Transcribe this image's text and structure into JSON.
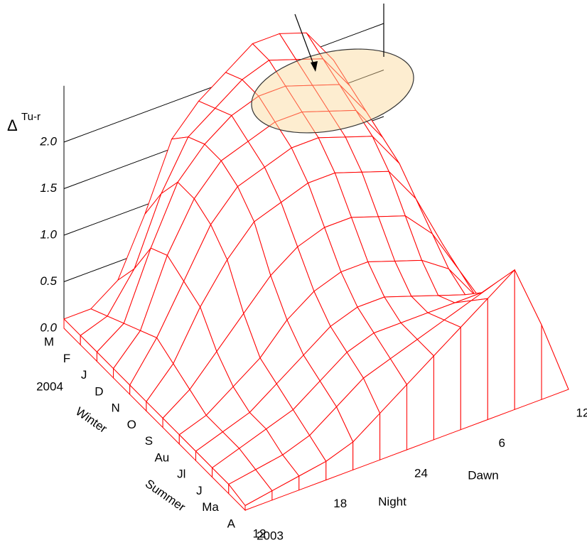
{
  "chart_data": {
    "type": "surface",
    "zlabel": {
      "symbol": "Δ",
      "superscript": "Tu-r"
    },
    "zlim": [
      0,
      2.3
    ],
    "zticks": [
      {
        "value": 0,
        "label": "0.0"
      },
      0.5,
      {
        "value": 1,
        "label": "1.0"
      },
      1.5,
      {
        "value": 2,
        "label": "2.0"
      }
    ],
    "x": [
      "12",
      null,
      null,
      "18",
      null,
      null,
      "24",
      null,
      null,
      "6",
      null,
      null,
      "12"
    ],
    "x_groups": [
      "Night",
      "Dawn"
    ],
    "y": [
      "A",
      "Ma",
      "J",
      "Jl",
      "Au",
      "S",
      "O",
      "N",
      "D",
      "J",
      "F",
      "M"
    ],
    "y_groups": [
      "2003",
      "Summer",
      "Winter",
      "2004"
    ],
    "color": "#ff0000",
    "values": [
      [
        0.05,
        0.1,
        0.15,
        0.2,
        0.3,
        0.5,
        0.7,
        0.9,
        1.1,
        1.3,
        1.5,
        0.8,
        0.0
      ],
      [
        0.1,
        0.15,
        0.2,
        0.3,
        0.5,
        0.7,
        0.8,
        0.9,
        1.0,
        1.1,
        1.2,
        0.6,
        0.0
      ],
      [
        0.1,
        0.2,
        0.3,
        0.4,
        0.6,
        0.8,
        0.9,
        0.9,
        0.9,
        0.9,
        0.9,
        0.5,
        0.0
      ],
      [
        0.1,
        0.2,
        0.3,
        0.5,
        0.7,
        0.9,
        1.0,
        1.0,
        0.9,
        0.8,
        0.7,
        0.4,
        0.0
      ],
      [
        0.1,
        0.2,
        0.4,
        0.6,
        0.9,
        1.1,
        1.2,
        1.2,
        1.1,
        1.0,
        0.8,
        0.4,
        0.0
      ],
      [
        0.1,
        0.3,
        0.6,
        0.9,
        1.2,
        1.4,
        1.5,
        1.5,
        1.4,
        1.3,
        1.0,
        0.5,
        0.0
      ],
      [
        0.1,
        0.4,
        0.9,
        1.3,
        1.6,
        1.7,
        1.8,
        1.8,
        1.7,
        1.6,
        1.2,
        0.6,
        0.0
      ],
      [
        0.1,
        0.5,
        1.0,
        1.5,
        1.8,
        1.9,
        2.0,
        2.0,
        1.9,
        1.8,
        1.4,
        0.6,
        0.0
      ],
      [
        0.1,
        0.4,
        1.1,
        1.6,
        1.9,
        2.0,
        2.1,
        2.1,
        2.0,
        1.9,
        1.5,
        0.7,
        0.0
      ],
      [
        0.1,
        0.3,
        1.0,
        1.6,
        1.9,
        2.1,
        2.2,
        2.2,
        2.1,
        2.0,
        1.6,
        0.7,
        0.0
      ],
      [
        0.1,
        0.2,
        0.6,
        1.3,
        1.8,
        2.0,
        2.2,
        2.3,
        2.2,
        2.1,
        1.7,
        0.8,
        0.0
      ],
      [
        0.1,
        0.1,
        0.3,
        0.9,
        1.6,
        1.9,
        2.1,
        2.3,
        2.3,
        2.2,
        1.8,
        0.9,
        0.0
      ]
    ]
  }
}
